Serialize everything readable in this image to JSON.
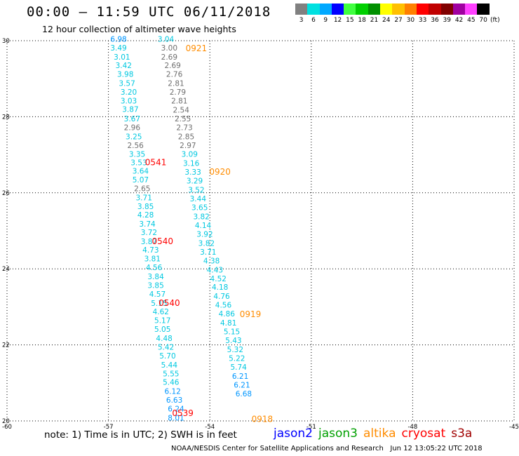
{
  "header": {
    "title": "00:00 – 11:59 UTC 06/11/2018",
    "subtitle": "12 hour collection of altimeter wave heights"
  },
  "color_scale": {
    "unit": "(ft)",
    "items": [
      {
        "label": "3",
        "color": "#808080"
      },
      {
        "label": "6",
        "color": "#00e0e0"
      },
      {
        "label": "9",
        "color": "#00a8ff"
      },
      {
        "label": "12",
        "color": "#0000ff"
      },
      {
        "label": "15",
        "color": "#40ff40"
      },
      {
        "label": "18",
        "color": "#00d000"
      },
      {
        "label": "21",
        "color": "#009000"
      },
      {
        "label": "24",
        "color": "#ffff00"
      },
      {
        "label": "27",
        "color": "#ffc000"
      },
      {
        "label": "30",
        "color": "#ff8000"
      },
      {
        "label": "33",
        "color": "#ff0000"
      },
      {
        "label": "36",
        "color": "#c00000"
      },
      {
        "label": "39",
        "color": "#800000"
      },
      {
        "label": "42",
        "color": "#a000a0"
      },
      {
        "label": "45",
        "color": "#ff40ff"
      },
      {
        "label": "70",
        "color": "#000000"
      }
    ]
  },
  "footer": {
    "note": "note: 1) Time is in UTC; 2) SWH is in feet",
    "satellites": [
      {
        "name": "jason2",
        "color": "#0000ff"
      },
      {
        "name": "jason3",
        "color": "#00a000"
      },
      {
        "name": "altika",
        "color": "#ff8c00"
      },
      {
        "name": "cryosat",
        "color": "#ff0000"
      },
      {
        "name": "s3a",
        "color": "#a00000"
      }
    ],
    "credit": "NOAA/NESDIS Center for Satellite Applications and Research   Jun 12 13:05:22 UTC 2018"
  },
  "chart_data": {
    "type": "scatter",
    "title": "00:00 – 11:59 UTC 06/11/2018",
    "subtitle": "12 hour collection of altimeter wave heights",
    "xlim": [
      -60,
      -45
    ],
    "ylim": [
      20,
      30
    ],
    "x_ticks": [
      "-60",
      "-57",
      "-54",
      "-51",
      "-48",
      "-45"
    ],
    "y_ticks": [
      "20",
      "22",
      "24",
      "26",
      "28",
      "30"
    ],
    "grid": true,
    "series": [
      {
        "colors": {
          "gray": "#6e6e6e",
          "cyan": "#00c8e0",
          "blue": "#0096ff"
        },
        "points": [
          {
            "x": -56.7,
            "y": 30.05,
            "v": "6.98",
            "c": "blue"
          },
          {
            "x": -56.7,
            "y": 29.82,
            "v": "3.49",
            "c": "cyan"
          },
          {
            "x": -56.6,
            "y": 29.58,
            "v": "3.01",
            "c": "cyan"
          },
          {
            "x": -56.55,
            "y": 29.35,
            "v": "3.42",
            "c": "cyan"
          },
          {
            "x": -56.5,
            "y": 29.12,
            "v": "3.98",
            "c": "cyan"
          },
          {
            "x": -56.45,
            "y": 28.88,
            "v": "3.57",
            "c": "cyan"
          },
          {
            "x": -56.4,
            "y": 28.65,
            "v": "3.20",
            "c": "cyan"
          },
          {
            "x": -56.4,
            "y": 28.42,
            "v": "3.03",
            "c": "cyan"
          },
          {
            "x": -56.35,
            "y": 28.2,
            "v": "3.87",
            "c": "cyan"
          },
          {
            "x": -56.3,
            "y": 27.95,
            "v": "3.67",
            "c": "cyan"
          },
          {
            "x": -56.3,
            "y": 27.72,
            "v": "2.96",
            "c": "gray"
          },
          {
            "x": -56.25,
            "y": 27.48,
            "v": "3.25",
            "c": "cyan"
          },
          {
            "x": -56.2,
            "y": 27.25,
            "v": "2.56",
            "c": "gray"
          },
          {
            "x": -56.15,
            "y": 27.02,
            "v": "3.35",
            "c": "cyan"
          },
          {
            "x": -56.1,
            "y": 26.8,
            "v": "3.53",
            "c": "cyan"
          },
          {
            "x": -56.05,
            "y": 26.58,
            "v": "3.64",
            "c": "cyan"
          },
          {
            "x": -56.05,
            "y": 26.35,
            "v": "5.07",
            "c": "cyan"
          },
          {
            "x": -56.0,
            "y": 26.12,
            "v": "2.65",
            "c": "gray"
          },
          {
            "x": -55.95,
            "y": 25.88,
            "v": "3.71",
            "c": "cyan"
          },
          {
            "x": -55.9,
            "y": 25.65,
            "v": "3.85",
            "c": "cyan"
          },
          {
            "x": -55.9,
            "y": 25.42,
            "v": "4.28",
            "c": "cyan"
          },
          {
            "x": -55.85,
            "y": 25.18,
            "v": "3.74",
            "c": "cyan"
          },
          {
            "x": -55.8,
            "y": 24.96,
            "v": "3.72",
            "c": "cyan"
          },
          {
            "x": -55.8,
            "y": 24.72,
            "v": "3.87",
            "c": "cyan"
          },
          {
            "x": -55.75,
            "y": 24.5,
            "v": "4.73",
            "c": "cyan"
          },
          {
            "x": -55.7,
            "y": 24.27,
            "v": "3.81",
            "c": "cyan"
          },
          {
            "x": -55.65,
            "y": 24.04,
            "v": "4.56",
            "c": "cyan"
          },
          {
            "x": -55.6,
            "y": 23.8,
            "v": "3.84",
            "c": "cyan"
          },
          {
            "x": -55.6,
            "y": 23.57,
            "v": "3.85",
            "c": "cyan"
          },
          {
            "x": -55.55,
            "y": 23.34,
            "v": "4.57",
            "c": "cyan"
          },
          {
            "x": -55.5,
            "y": 23.1,
            "v": "5.15",
            "c": "cyan"
          },
          {
            "x": -55.45,
            "y": 22.88,
            "v": "4.62",
            "c": "cyan"
          },
          {
            "x": -55.4,
            "y": 22.65,
            "v": "5.17",
            "c": "cyan"
          },
          {
            "x": -55.4,
            "y": 22.42,
            "v": "5.05",
            "c": "cyan"
          },
          {
            "x": -55.35,
            "y": 22.18,
            "v": "4.48",
            "c": "cyan"
          },
          {
            "x": -55.3,
            "y": 21.95,
            "v": "5.42",
            "c": "cyan"
          },
          {
            "x": -55.25,
            "y": 21.72,
            "v": "5.70",
            "c": "cyan"
          },
          {
            "x": -55.2,
            "y": 21.48,
            "v": "5.44",
            "c": "cyan"
          },
          {
            "x": -55.15,
            "y": 21.25,
            "v": "5.55",
            "c": "cyan"
          },
          {
            "x": -55.15,
            "y": 21.02,
            "v": "5.46",
            "c": "cyan"
          },
          {
            "x": -55.1,
            "y": 20.78,
            "v": "6.12",
            "c": "blue"
          },
          {
            "x": -55.05,
            "y": 20.55,
            "v": "6.63",
            "c": "blue"
          },
          {
            "x": -55.0,
            "y": 20.32,
            "v": "6.24",
            "c": "blue"
          },
          {
            "x": -55.0,
            "y": 20.08,
            "v": "8.01",
            "c": "blue"
          },
          {
            "x": -55.3,
            "y": 30.05,
            "v": "3.04",
            "c": "cyan"
          },
          {
            "x": -55.2,
            "y": 29.82,
            "v": "3.00",
            "c": "gray"
          },
          {
            "x": -55.2,
            "y": 29.58,
            "v": "2.69",
            "c": "gray"
          },
          {
            "x": -55.1,
            "y": 29.35,
            "v": "2.69",
            "c": "gray"
          },
          {
            "x": -55.05,
            "y": 29.12,
            "v": "2.76",
            "c": "gray"
          },
          {
            "x": -55.0,
            "y": 28.88,
            "v": "2.81",
            "c": "gray"
          },
          {
            "x": -54.95,
            "y": 28.65,
            "v": "2.79",
            "c": "gray"
          },
          {
            "x": -54.9,
            "y": 28.42,
            "v": "2.81",
            "c": "gray"
          },
          {
            "x": -54.85,
            "y": 28.18,
            "v": "2.54",
            "c": "gray"
          },
          {
            "x": -54.8,
            "y": 27.95,
            "v": "2.55",
            "c": "gray"
          },
          {
            "x": -54.75,
            "y": 27.72,
            "v": "2.73",
            "c": "gray"
          },
          {
            "x": -54.7,
            "y": 27.48,
            "v": "2.85",
            "c": "gray"
          },
          {
            "x": -54.65,
            "y": 27.25,
            "v": "2.97",
            "c": "gray"
          },
          {
            "x": -54.6,
            "y": 27.02,
            "v": "3.09",
            "c": "cyan"
          },
          {
            "x": -54.55,
            "y": 26.78,
            "v": "3.16",
            "c": "cyan"
          },
          {
            "x": -54.5,
            "y": 26.55,
            "v": "3.33",
            "c": "cyan"
          },
          {
            "x": -54.45,
            "y": 26.32,
            "v": "3.29",
            "c": "cyan"
          },
          {
            "x": -54.4,
            "y": 26.08,
            "v": "3.52",
            "c": "cyan"
          },
          {
            "x": -54.35,
            "y": 25.85,
            "v": "3.44",
            "c": "cyan"
          },
          {
            "x": -54.3,
            "y": 25.62,
            "v": "3.65",
            "c": "cyan"
          },
          {
            "x": -54.25,
            "y": 25.38,
            "v": "3.82",
            "c": "cyan"
          },
          {
            "x": -54.2,
            "y": 25.15,
            "v": "4.14",
            "c": "cyan"
          },
          {
            "x": -54.15,
            "y": 24.92,
            "v": "3.92",
            "c": "cyan"
          },
          {
            "x": -54.1,
            "y": 24.68,
            "v": "3.82",
            "c": "cyan"
          },
          {
            "x": -54.05,
            "y": 24.45,
            "v": "3.71",
            "c": "cyan"
          },
          {
            "x": -53.95,
            "y": 24.22,
            "v": "4.38",
            "c": "cyan"
          },
          {
            "x": -53.85,
            "y": 23.98,
            "v": "4.43",
            "c": "cyan"
          },
          {
            "x": -53.75,
            "y": 23.75,
            "v": "4.52",
            "c": "cyan"
          },
          {
            "x": -53.7,
            "y": 23.52,
            "v": "4.18",
            "c": "cyan"
          },
          {
            "x": -53.65,
            "y": 23.28,
            "v": "4.76",
            "c": "cyan"
          },
          {
            "x": -53.6,
            "y": 23.05,
            "v": "4.56",
            "c": "cyan"
          },
          {
            "x": -53.5,
            "y": 22.82,
            "v": "4.86",
            "c": "cyan"
          },
          {
            "x": -53.45,
            "y": 22.58,
            "v": "4.81",
            "c": "cyan"
          },
          {
            "x": -53.35,
            "y": 22.35,
            "v": "5.15",
            "c": "cyan"
          },
          {
            "x": -53.3,
            "y": 22.12,
            "v": "5.43",
            "c": "cyan"
          },
          {
            "x": -53.25,
            "y": 21.88,
            "v": "5.32",
            "c": "cyan"
          },
          {
            "x": -53.2,
            "y": 21.65,
            "v": "5.22",
            "c": "cyan"
          },
          {
            "x": -53.15,
            "y": 21.42,
            "v": "5.74",
            "c": "cyan"
          },
          {
            "x": -53.1,
            "y": 21.18,
            "v": "6.21",
            "c": "blue"
          },
          {
            "x": -53.05,
            "y": 20.95,
            "v": "6.21",
            "c": "blue"
          },
          {
            "x": -53.0,
            "y": 20.72,
            "v": "6.68",
            "c": "blue"
          }
        ]
      }
    ],
    "annotations": [
      {
        "text": "0921",
        "x": -54.4,
        "y": 29.8,
        "color": "#ff8c00"
      },
      {
        "text": "0920",
        "x": -53.7,
        "y": 26.55,
        "color": "#ff8c00"
      },
      {
        "text": "0919",
        "x": -52.8,
        "y": 22.8,
        "color": "#ff8c00"
      },
      {
        "text": "0918",
        "x": -52.45,
        "y": 20.05,
        "color": "#ff8c00"
      },
      {
        "text": "0541",
        "x": -55.6,
        "y": 26.8,
        "color": "#ff0000"
      },
      {
        "text": "0540",
        "x": -55.4,
        "y": 24.72,
        "color": "#ff0000"
      },
      {
        "text": "0540",
        "x": -55.2,
        "y": 23.1,
        "color": "#ff0000"
      },
      {
        "text": "0539",
        "x": -54.8,
        "y": 20.2,
        "color": "#ff0000"
      }
    ]
  }
}
